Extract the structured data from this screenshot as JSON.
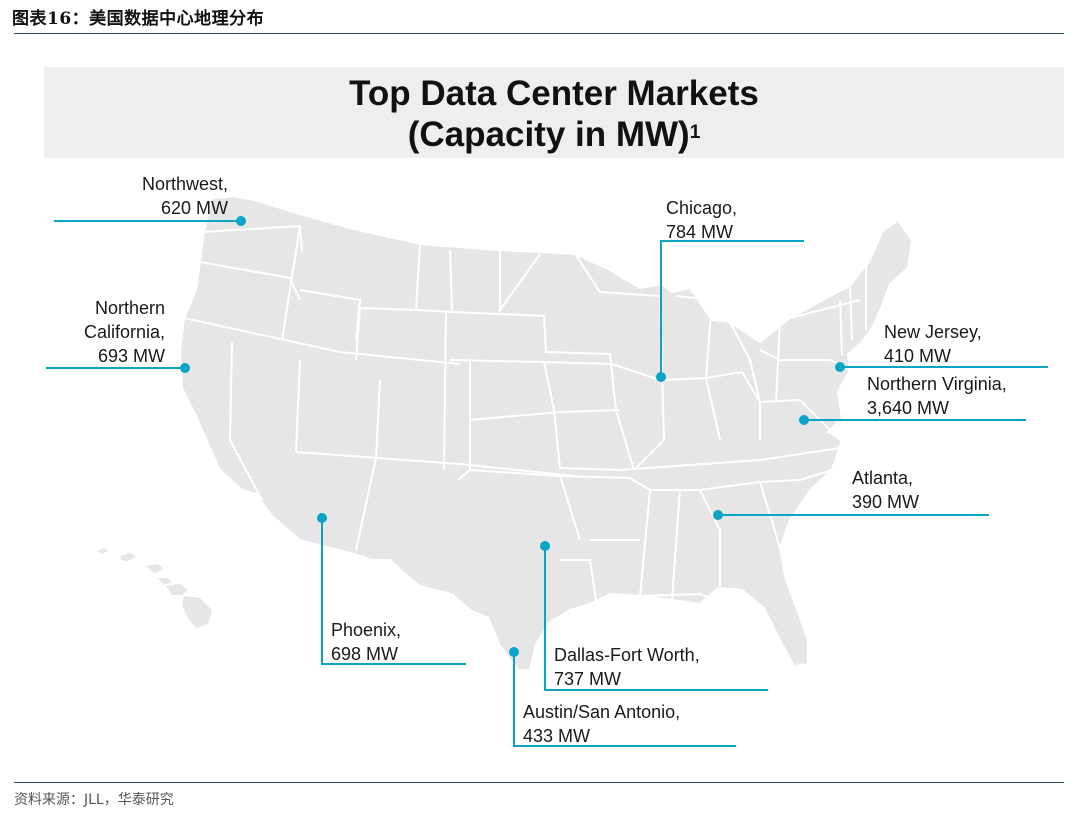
{
  "figure": {
    "label": "图表16：",
    "title": "美国数据中心地理分布",
    "source": "资料来源：JLL，华泰研究"
  },
  "map": {
    "title_line1": "Top Data Center Markets",
    "title_line2": "(Capacity in MW)",
    "title_footnote": "1",
    "colors": {
      "state_fill": "#e6e6e6",
      "state_stroke": "#ffffff",
      "accent": "#0aa5c6"
    },
    "markets": [
      {
        "id": "northwest",
        "name_lines": [
          "Northwest,"
        ],
        "capacity_text": "620 MW",
        "capacity_mw": 620
      },
      {
        "id": "northern-california",
        "name_lines": [
          "Northern",
          "California,"
        ],
        "capacity_text": "693 MW",
        "capacity_mw": 693
      },
      {
        "id": "chicago",
        "name_lines": [
          "Chicago,"
        ],
        "capacity_text": "784 MW",
        "capacity_mw": 784
      },
      {
        "id": "new-jersey",
        "name_lines": [
          "New Jersey,"
        ],
        "capacity_text": "410 MW",
        "capacity_mw": 410
      },
      {
        "id": "northern-virginia",
        "name_lines": [
          "Northern Virginia,"
        ],
        "capacity_text": "3,640 MW",
        "capacity_mw": 3640
      },
      {
        "id": "atlanta",
        "name_lines": [
          "Atlanta,"
        ],
        "capacity_text": "390 MW",
        "capacity_mw": 390
      },
      {
        "id": "phoenix",
        "name_lines": [
          "Phoenix,"
        ],
        "capacity_text": "698 MW",
        "capacity_mw": 698
      },
      {
        "id": "dallas-fort-worth",
        "name_lines": [
          "Dallas-Fort Worth,"
        ],
        "capacity_text": "737 MW",
        "capacity_mw": 737
      },
      {
        "id": "austin-san-antonio",
        "name_lines": [
          "Austin/San Antonio,"
        ],
        "capacity_text": "433 MW",
        "capacity_mw": 433
      }
    ]
  }
}
